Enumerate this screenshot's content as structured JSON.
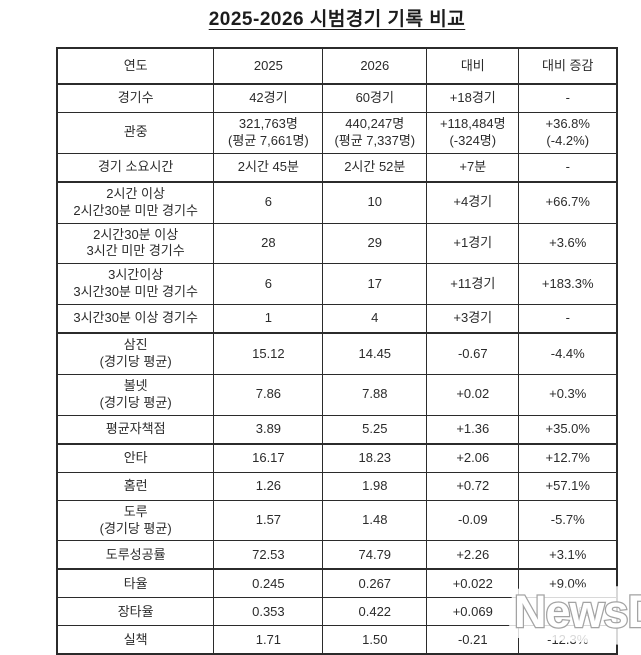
{
  "chart_data": {
    "type": "table",
    "title": "2025-2026 시범경기 기록 비교",
    "columns": [
      "연도",
      "2025",
      "2026",
      "대비",
      "대비 증감"
    ],
    "rows": [
      [
        [
          "경기수"
        ],
        [
          "42경기"
        ],
        [
          "60경기"
        ],
        [
          "+18경기"
        ],
        [
          "-"
        ]
      ],
      [
        [
          "관중"
        ],
        [
          "321,763명",
          "(평균 7,661명)"
        ],
        [
          "440,247명",
          "(평균 7,337명)"
        ],
        [
          "+118,484명",
          "(-324명)"
        ],
        [
          "+36.8%",
          "(-4.2%)"
        ]
      ],
      [
        [
          "경기 소요시간"
        ],
        [
          "2시간 45분"
        ],
        [
          "2시간 52분"
        ],
        [
          "+7분"
        ],
        [
          "-"
        ]
      ],
      [
        [
          "2시간 이상",
          "2시간30분 미만 경기수"
        ],
        [
          "6"
        ],
        [
          "10"
        ],
        [
          "+4경기"
        ],
        [
          "+66.7%"
        ]
      ],
      [
        [
          "2시간30분 이상",
          "3시간 미만 경기수"
        ],
        [
          "28"
        ],
        [
          "29"
        ],
        [
          "+1경기"
        ],
        [
          "+3.6%"
        ]
      ],
      [
        [
          "3시간이상",
          "3시간30분 미만 경기수"
        ],
        [
          "6"
        ],
        [
          "17"
        ],
        [
          "+11경기"
        ],
        [
          "+183.3%"
        ]
      ],
      [
        [
          "3시간30분 이상 경기수"
        ],
        [
          "1"
        ],
        [
          "4"
        ],
        [
          "+3경기"
        ],
        [
          "-"
        ]
      ],
      [
        [
          "삼진",
          "(경기당 평균)"
        ],
        [
          "15.12"
        ],
        [
          "14.45"
        ],
        [
          "-0.67"
        ],
        [
          "-4.4%"
        ]
      ],
      [
        [
          "볼넷",
          "(경기당 평균)"
        ],
        [
          "7.86"
        ],
        [
          "7.88"
        ],
        [
          "+0.02"
        ],
        [
          "+0.3%"
        ]
      ],
      [
        [
          "평균자책점"
        ],
        [
          "3.89"
        ],
        [
          "5.25"
        ],
        [
          "+1.36"
        ],
        [
          "+35.0%"
        ]
      ],
      [
        [
          "안타"
        ],
        [
          "16.17"
        ],
        [
          "18.23"
        ],
        [
          "+2.06"
        ],
        [
          "+12.7%"
        ]
      ],
      [
        [
          "홈런"
        ],
        [
          "1.26"
        ],
        [
          "1.98"
        ],
        [
          "+0.72"
        ],
        [
          "+57.1%"
        ]
      ],
      [
        [
          "도루",
          "(경기당 평균)"
        ],
        [
          "1.57"
        ],
        [
          "1.48"
        ],
        [
          "-0.09"
        ],
        [
          "-5.7%"
        ]
      ],
      [
        [
          "도루성공률"
        ],
        [
          "72.53"
        ],
        [
          "74.79"
        ],
        [
          "+2.26"
        ],
        [
          "+3.1%"
        ]
      ],
      [
        [
          "타율"
        ],
        [
          "0.245"
        ],
        [
          "0.267"
        ],
        [
          "+0.022"
        ],
        [
          "+9.0%"
        ]
      ],
      [
        [
          "장타율"
        ],
        [
          "0.353"
        ],
        [
          "0.422"
        ],
        [
          "+0.069"
        ],
        [
          "+19.5%"
        ]
      ],
      [
        [
          "실책"
        ],
        [
          "1.71"
        ],
        [
          "1.50"
        ],
        [
          "-0.21"
        ],
        [
          "-12.3%"
        ]
      ]
    ]
  },
  "watermark": {
    "text": "NewsDa"
  },
  "colors": {
    "background": "#ffffff",
    "text": "#2b2b2b",
    "border": "#2b2b2b",
    "watermark_fill": "#ffffff",
    "watermark_outline": "#a3a3a3"
  }
}
